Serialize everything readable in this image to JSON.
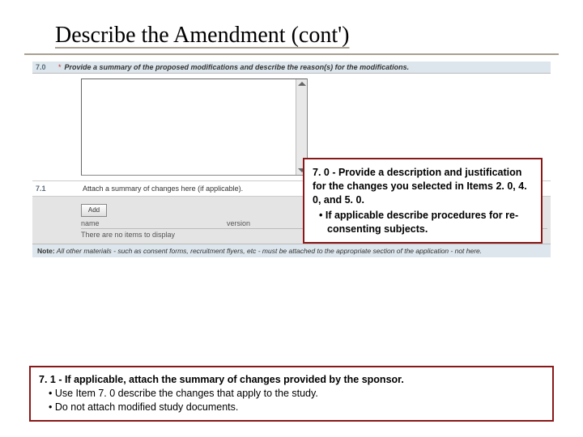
{
  "title": "Describe the Amendment (cont')",
  "form": {
    "row70_num": "7.0",
    "row70_star": "*",
    "row70_prompt": "Provide a summary of the proposed modifications and describe the reason(s) for the modifications.",
    "row71_num": "7.1",
    "row71_prompt": "Attach a summary of changes here (if applicable).",
    "add_btn": "Add",
    "col_name": "name",
    "col_version": "version",
    "no_items": "There are no items to display",
    "note_label": "Note:",
    "note_text": " All other materials - such as consent forms, recruitment flyers, etc - must be attached to the appropriate section of the application - not here."
  },
  "callout1": {
    "line1": "7. 0 - Provide a description and  justification for the changes you selected in Items 2. 0, 4. 0, and 5. 0.",
    "bullet": "• If applicable describe procedures for re-consenting subjects."
  },
  "callout2": {
    "line1": "7. 1 -  If applicable, attach the summary of changes provided by the sponsor.",
    "b1": "• Use Item 7. 0 describe the changes that apply to the study.",
    "b2": "• Do not attach modified study documents."
  },
  "colors": {
    "callout_border": "#8a1818",
    "header_bg": "#dce6ec"
  }
}
